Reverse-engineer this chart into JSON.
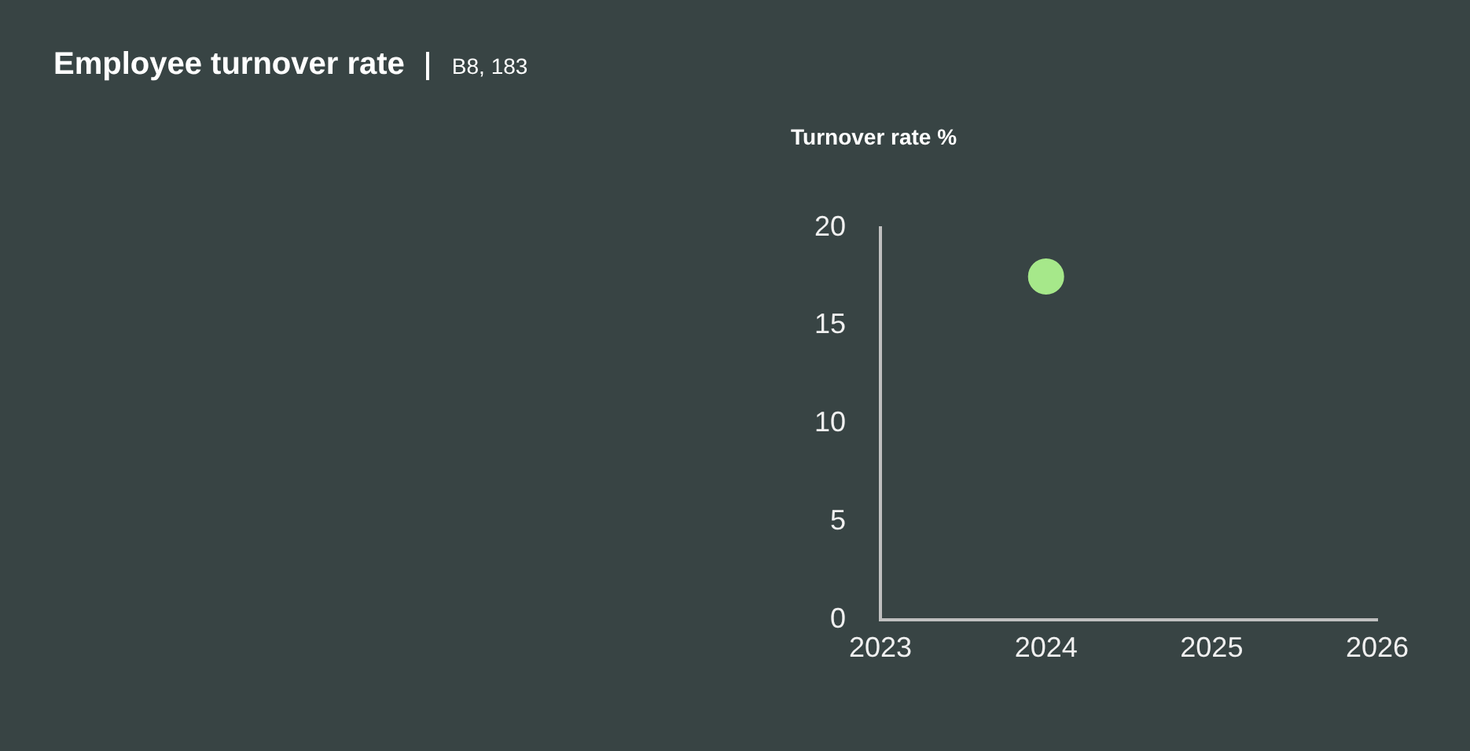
{
  "chart_data": {
    "type": "scatter",
    "title": "Employee turnover rate",
    "subtitle": "B8, 183",
    "ylabel": "Turnover rate %",
    "x": [
      2024
    ],
    "values": [
      17.5
    ],
    "color": "#a6e88a",
    "marker": "circle",
    "xlim": [
      2023,
      2026
    ],
    "xticks": [
      2023,
      2024,
      2025,
      2026
    ],
    "ylim": [
      0,
      20
    ],
    "yticks": [
      0,
      5,
      10,
      15,
      20
    ],
    "grid": false,
    "legend": false
  }
}
